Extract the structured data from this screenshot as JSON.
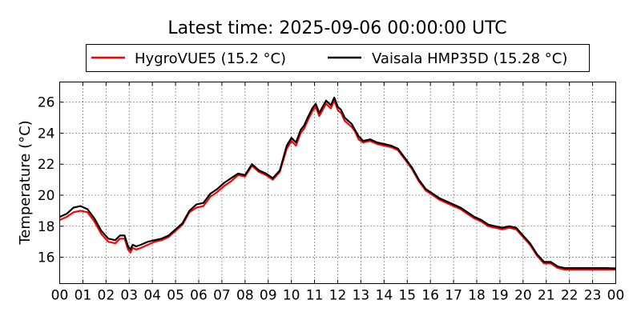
{
  "chart_data": {
    "type": "line",
    "title": "Latest time: 2025-09-06 00:00:00 UTC",
    "xlabel": "",
    "ylabel": "Temperature (°C)",
    "xlim": [
      0,
      24
    ],
    "ylim": [
      14.3,
      27.3
    ],
    "x_ticks": [
      "00",
      "01",
      "02",
      "03",
      "04",
      "05",
      "06",
      "07",
      "08",
      "09",
      "10",
      "11",
      "12",
      "13",
      "14",
      "15",
      "16",
      "17",
      "18",
      "19",
      "20",
      "21",
      "22",
      "23",
      "00"
    ],
    "y_ticks": [
      16,
      18,
      20,
      22,
      24,
      26
    ],
    "grid": true,
    "legend_position": "top-center",
    "series": [
      {
        "name": "HygroVUE5 (15.2 °C)",
        "color": "#ff0000",
        "x": [
          0,
          0.3,
          0.6,
          0.9,
          1.2,
          1.5,
          1.8,
          2.1,
          2.4,
          2.6,
          2.8,
          2.95,
          3.05,
          3.15,
          3.3,
          3.5,
          3.8,
          4.1,
          4.4,
          4.7,
          5.0,
          5.3,
          5.6,
          5.9,
          6.2,
          6.5,
          6.8,
          7.1,
          7.4,
          7.7,
          8.0,
          8.3,
          8.6,
          8.9,
          9.2,
          9.5,
          9.8,
          10.0,
          10.2,
          10.4,
          10.55,
          10.7,
          10.9,
          11.05,
          11.2,
          11.35,
          11.5,
          11.7,
          11.85,
          12.0,
          12.15,
          12.3,
          12.45,
          12.6,
          12.75,
          12.9,
          13.1,
          13.4,
          13.7,
          14.0,
          14.3,
          14.6,
          14.9,
          15.2,
          15.5,
          15.8,
          16.1,
          16.4,
          16.7,
          17.0,
          17.3,
          17.6,
          17.9,
          18.2,
          18.5,
          18.8,
          19.1,
          19.4,
          19.7,
          20.0,
          20.3,
          20.6,
          20.9,
          21.2,
          21.5,
          21.8,
          22.1,
          22.4,
          22.7,
          23.0,
          23.3,
          23.6,
          24.0
        ],
        "y": [
          18.4,
          18.6,
          18.9,
          19.0,
          18.9,
          18.3,
          17.5,
          17.0,
          16.9,
          17.2,
          17.2,
          16.5,
          16.3,
          16.6,
          16.5,
          16.6,
          16.8,
          17.0,
          17.1,
          17.3,
          17.7,
          18.1,
          18.9,
          19.2,
          19.3,
          19.9,
          20.2,
          20.6,
          20.9,
          21.3,
          21.2,
          21.9,
          21.5,
          21.3,
          21.0,
          21.5,
          23.0,
          23.5,
          23.2,
          24.0,
          24.3,
          24.8,
          25.4,
          25.7,
          25.1,
          25.5,
          25.9,
          25.6,
          26.1,
          25.5,
          25.3,
          24.8,
          24.6,
          24.4,
          24.1,
          23.6,
          23.4,
          23.5,
          23.3,
          23.2,
          23.1,
          22.9,
          22.3,
          21.7,
          20.9,
          20.3,
          20.0,
          19.7,
          19.5,
          19.3,
          19.1,
          18.8,
          18.5,
          18.3,
          18.0,
          17.9,
          17.8,
          17.9,
          17.8,
          17.3,
          16.8,
          16.1,
          15.6,
          15.6,
          15.3,
          15.2,
          15.2,
          15.2,
          15.2,
          15.2,
          15.2,
          15.2,
          15.2
        ]
      },
      {
        "name": "Vaisala HMP35D (15.28 °C)",
        "color": "#000000",
        "x": [
          0,
          0.3,
          0.6,
          0.9,
          1.2,
          1.5,
          1.8,
          2.1,
          2.4,
          2.6,
          2.8,
          2.95,
          3.05,
          3.15,
          3.3,
          3.5,
          3.8,
          4.1,
          4.4,
          4.7,
          5.0,
          5.3,
          5.6,
          5.9,
          6.2,
          6.5,
          6.8,
          7.1,
          7.4,
          7.7,
          8.0,
          8.3,
          8.6,
          8.9,
          9.2,
          9.5,
          9.8,
          10.0,
          10.2,
          10.4,
          10.55,
          10.7,
          10.9,
          11.05,
          11.2,
          11.35,
          11.5,
          11.7,
          11.85,
          12.0,
          12.15,
          12.3,
          12.45,
          12.6,
          12.75,
          12.9,
          13.1,
          13.4,
          13.7,
          14.0,
          14.3,
          14.6,
          14.9,
          15.2,
          15.5,
          15.8,
          16.1,
          16.4,
          16.7,
          17.0,
          17.3,
          17.6,
          17.9,
          18.2,
          18.5,
          18.8,
          19.1,
          19.4,
          19.7,
          20.0,
          20.3,
          20.6,
          20.9,
          21.2,
          21.5,
          21.8,
          22.1,
          22.4,
          22.7,
          23.0,
          23.3,
          23.6,
          24.0
        ],
        "y": [
          18.6,
          18.8,
          19.2,
          19.3,
          19.1,
          18.5,
          17.7,
          17.2,
          17.1,
          17.4,
          17.4,
          16.7,
          16.5,
          16.8,
          16.7,
          16.8,
          17.0,
          17.1,
          17.2,
          17.4,
          17.8,
          18.2,
          19.0,
          19.4,
          19.5,
          20.1,
          20.4,
          20.8,
          21.1,
          21.4,
          21.3,
          22.0,
          21.6,
          21.4,
          21.1,
          21.6,
          23.2,
          23.7,
          23.4,
          24.2,
          24.5,
          25.0,
          25.6,
          25.9,
          25.3,
          25.7,
          26.1,
          25.8,
          26.3,
          25.7,
          25.5,
          25.0,
          24.8,
          24.6,
          24.2,
          23.8,
          23.5,
          23.6,
          23.4,
          23.3,
          23.2,
          23.0,
          22.4,
          21.8,
          21.0,
          20.4,
          20.1,
          19.8,
          19.6,
          19.4,
          19.2,
          18.9,
          18.6,
          18.4,
          18.1,
          18.0,
          17.9,
          18.0,
          17.9,
          17.4,
          16.9,
          16.2,
          15.7,
          15.7,
          15.4,
          15.3,
          15.3,
          15.3,
          15.3,
          15.3,
          15.3,
          15.3,
          15.28
        ]
      }
    ]
  }
}
